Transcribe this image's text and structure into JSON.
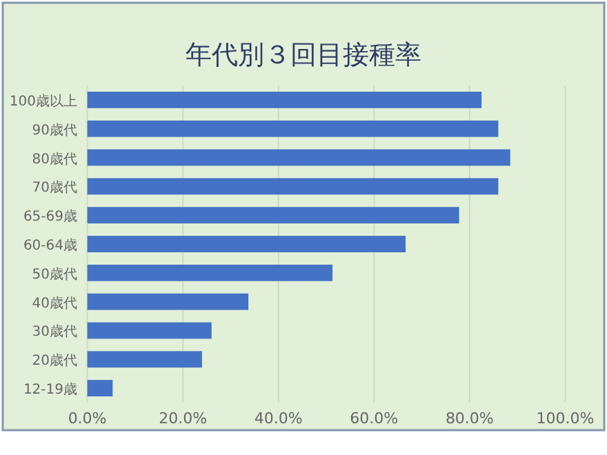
{
  "chart_data": {
    "type": "bar",
    "orientation": "horizontal",
    "title": "年代別３回目接種率",
    "categories": [
      "100歳以上",
      "90歳代",
      "80歳代",
      "70歳代",
      "65-69歳",
      "60-64歳",
      "50歳代",
      "40歳代",
      "30歳代",
      "20歳代",
      "12-19歳"
    ],
    "values": [
      82.5,
      86.0,
      88.5,
      86.0,
      77.8,
      66.6,
      51.3,
      33.7,
      26.0,
      24.0,
      5.3
    ],
    "color": "#4472c4",
    "xlim": [
      0,
      100
    ],
    "xticks": [
      {
        "value": 0,
        "label": "0.0%"
      },
      {
        "value": 20,
        "label": "20.0%"
      },
      {
        "value": 40,
        "label": "40.0%"
      },
      {
        "value": 60,
        "label": "60.0%"
      },
      {
        "value": 80,
        "label": "80.0%"
      },
      {
        "value": 100,
        "label": "100.0%"
      }
    ],
    "grid": "x"
  }
}
